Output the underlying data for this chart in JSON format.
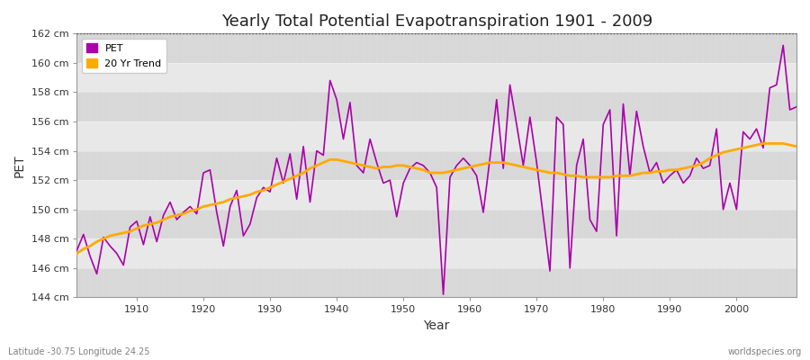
{
  "title": "Yearly Total Potential Evapotranspiration 1901 - 2009",
  "xlabel": "Year",
  "ylabel": "PET",
  "footer_left": "Latitude -30.75 Longitude 24.25",
  "footer_right": "worldspecies.org",
  "legend_labels": [
    "PET",
    "20 Yr Trend"
  ],
  "pet_color": "#aa00aa",
  "trend_color": "#ffaa00",
  "fig_bg_color": "#ffffff",
  "plot_bg_color": "#e0e0e0",
  "band_color1": "#d8d8d8",
  "band_color2": "#e8e8e8",
  "ylim": [
    144,
    162
  ],
  "yticks": [
    144,
    146,
    148,
    150,
    152,
    154,
    156,
    158,
    160,
    162
  ],
  "ytick_labels": [
    "144 cm",
    "146 cm",
    "148 cm",
    "150 cm",
    "152 cm",
    "154 cm",
    "156 cm",
    "158 cm",
    "160 cm",
    "162 cm"
  ],
  "years": [
    1901,
    1902,
    1903,
    1904,
    1905,
    1906,
    1907,
    1908,
    1909,
    1910,
    1911,
    1912,
    1913,
    1914,
    1915,
    1916,
    1917,
    1918,
    1919,
    1920,
    1921,
    1922,
    1923,
    1924,
    1925,
    1926,
    1927,
    1928,
    1929,
    1930,
    1931,
    1932,
    1933,
    1934,
    1935,
    1936,
    1937,
    1938,
    1939,
    1940,
    1941,
    1942,
    1943,
    1944,
    1945,
    1946,
    1947,
    1948,
    1949,
    1950,
    1951,
    1952,
    1953,
    1954,
    1955,
    1956,
    1957,
    1958,
    1959,
    1960,
    1961,
    1962,
    1963,
    1964,
    1965,
    1966,
    1967,
    1968,
    1969,
    1970,
    1971,
    1972,
    1973,
    1974,
    1975,
    1976,
    1977,
    1978,
    1979,
    1980,
    1981,
    1982,
    1983,
    1984,
    1985,
    1986,
    1987,
    1988,
    1989,
    1990,
    1991,
    1992,
    1993,
    1994,
    1995,
    1996,
    1997,
    1998,
    1999,
    2000,
    2001,
    2002,
    2003,
    2004,
    2005,
    2006,
    2007,
    2008,
    2009
  ],
  "pet_values": [
    147.2,
    148.3,
    146.8,
    145.6,
    148.1,
    147.5,
    147.0,
    146.2,
    148.8,
    149.2,
    147.6,
    149.5,
    147.8,
    149.6,
    150.5,
    149.3,
    149.8,
    150.2,
    149.7,
    152.5,
    152.7,
    149.8,
    147.5,
    150.2,
    151.3,
    148.2,
    149.0,
    150.8,
    151.5,
    151.2,
    153.5,
    151.8,
    153.8,
    150.7,
    154.3,
    150.5,
    154.0,
    153.7,
    158.8,
    157.5,
    154.8,
    157.3,
    153.0,
    152.5,
    154.8,
    153.2,
    151.8,
    152.0,
    149.5,
    151.8,
    152.8,
    153.2,
    153.0,
    152.5,
    151.5,
    144.2,
    152.2,
    153.0,
    153.5,
    153.0,
    152.3,
    149.8,
    153.5,
    157.5,
    152.8,
    158.5,
    155.8,
    153.0,
    156.3,
    153.2,
    149.5,
    145.8,
    156.3,
    155.8,
    146.0,
    153.0,
    154.8,
    149.3,
    148.5,
    155.8,
    156.8,
    148.2,
    157.2,
    152.3,
    156.7,
    154.3,
    152.5,
    153.2,
    151.8,
    152.3,
    152.7,
    151.8,
    152.3,
    153.5,
    152.8,
    153.0,
    155.5,
    150.0,
    151.8,
    150.0,
    155.3,
    154.8,
    155.5,
    154.2,
    158.3,
    158.5,
    161.2,
    156.8,
    157.0
  ],
  "trend_values": [
    147.0,
    147.3,
    147.5,
    147.8,
    148.0,
    148.2,
    148.3,
    148.4,
    148.5,
    148.7,
    148.9,
    149.0,
    149.1,
    149.3,
    149.5,
    149.6,
    149.7,
    149.9,
    150.0,
    150.2,
    150.3,
    150.4,
    150.5,
    150.7,
    150.8,
    150.9,
    151.0,
    151.2,
    151.3,
    151.5,
    151.7,
    151.9,
    152.1,
    152.3,
    152.5,
    152.8,
    153.0,
    153.2,
    153.4,
    153.4,
    153.3,
    153.2,
    153.1,
    153.0,
    152.9,
    152.8,
    152.9,
    152.9,
    153.0,
    153.0,
    152.9,
    152.8,
    152.7,
    152.5,
    152.5,
    152.5,
    152.6,
    152.7,
    152.8,
    152.9,
    153.0,
    153.1,
    153.2,
    153.2,
    153.2,
    153.1,
    153.0,
    152.9,
    152.8,
    152.7,
    152.6,
    152.5,
    152.5,
    152.4,
    152.3,
    152.3,
    152.2,
    152.2,
    152.2,
    152.2,
    152.2,
    152.3,
    152.3,
    152.3,
    152.4,
    152.5,
    152.5,
    152.6,
    152.6,
    152.7,
    152.7,
    152.8,
    152.9,
    153.0,
    153.2,
    153.5,
    153.7,
    153.9,
    154.0,
    154.1,
    154.2,
    154.3,
    154.4,
    154.5,
    154.5,
    154.5,
    154.5,
    154.4,
    154.3
  ]
}
